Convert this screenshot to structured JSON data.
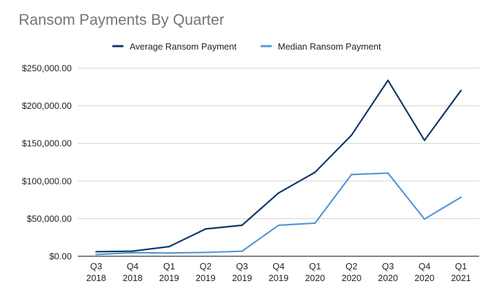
{
  "chart_data": {
    "type": "line",
    "title": "Ransom Payments By Quarter",
    "xlabel": "",
    "ylabel": "",
    "categories": [
      [
        "Q3",
        "2018"
      ],
      [
        "Q4",
        "2018"
      ],
      [
        "Q1",
        "2019"
      ],
      [
        "Q2",
        "2019"
      ],
      [
        "Q3",
        "2019"
      ],
      [
        "Q4",
        "2019"
      ],
      [
        "Q1",
        "2020"
      ],
      [
        "Q2",
        "2020"
      ],
      [
        "Q3",
        "2020"
      ],
      [
        "Q4",
        "2020"
      ],
      [
        "Q1",
        "2021"
      ]
    ],
    "ylim": [
      0,
      250000
    ],
    "yticks": [
      0,
      50000,
      100000,
      150000,
      200000,
      250000
    ],
    "ytick_labels": [
      "$0.00",
      "$50,000.00",
      "$100,000.00",
      "$150,000.00",
      "$200,000.00",
      "$250,000.00"
    ],
    "grid": true,
    "legend_position": "top",
    "series": [
      {
        "name": "Average Ransom Payment",
        "color": "#0b3466",
        "values": [
          6000,
          6800,
          12800,
          36300,
          41200,
          84100,
          111600,
          161000,
          233800,
          154100,
          220300
        ]
      },
      {
        "name": "Median Ransom Payment",
        "color": "#4f97d8",
        "values": [
          2300,
          4800,
          4300,
          5100,
          6700,
          41200,
          44000,
          108600,
          110500,
          49400,
          78400
        ]
      }
    ]
  }
}
